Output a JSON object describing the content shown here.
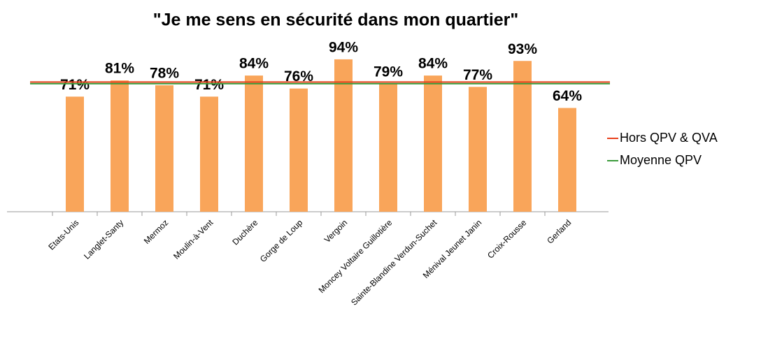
{
  "chart_data": {
    "type": "bar",
    "title": "\"Je me sens en sécurité dans mon quartier\"",
    "categories": [
      "Etats-Unis",
      "Langlet-Santy",
      "Mermoz",
      "Moulin-à-Vent",
      "Duchère",
      "Gorge de Loup",
      "Vergoin",
      "Moncey Voltaire Guillotière",
      "Sainte-Blandine Verdun-Suchet",
      "Ménival Jeunet Janin",
      "Croix-Rousse",
      "Gerland"
    ],
    "values": [
      71,
      81,
      78,
      71,
      84,
      76,
      94,
      79,
      84,
      77,
      93,
      64
    ],
    "value_labels": [
      "71%",
      "81%",
      "78%",
      "71%",
      "84%",
      "76%",
      "94%",
      "79%",
      "84%",
      "77%",
      "93%",
      "64%"
    ],
    "color": "#f9a55a",
    "ylim": [
      0,
      100
    ],
    "reference_lines": [
      {
        "name": "Hors QPV & QVA",
        "color": "#e8401c",
        "value": 80
      },
      {
        "name": "Moyenne QPV",
        "color": "#3a9a3a",
        "value": 79
      }
    ]
  }
}
